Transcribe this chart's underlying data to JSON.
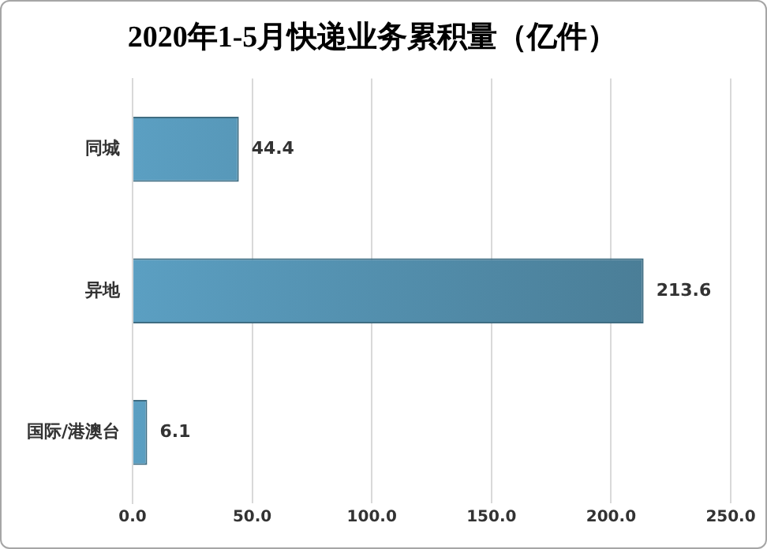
{
  "chart_data": {
    "type": "bar",
    "orientation": "horizontal",
    "title": "2020年1-5月快递业务累积量（亿件）",
    "categories": [
      "同城",
      "异地",
      "国际/港澳台"
    ],
    "values": [
      44.4,
      213.6,
      6.1
    ],
    "color": "#5b9fc2",
    "xlim": [
      0,
      250
    ],
    "xticks": [
      {
        "value": 0,
        "label": "0.0"
      },
      {
        "value": 50,
        "label": "50.0"
      },
      {
        "value": 100,
        "label": "100.0"
      },
      {
        "value": 150,
        "label": "150.0"
      },
      {
        "value": 200,
        "label": "200.0"
      },
      {
        "value": 250,
        "label": "250.0"
      }
    ],
    "grid": "x",
    "data_labels": true,
    "legend": false
  }
}
